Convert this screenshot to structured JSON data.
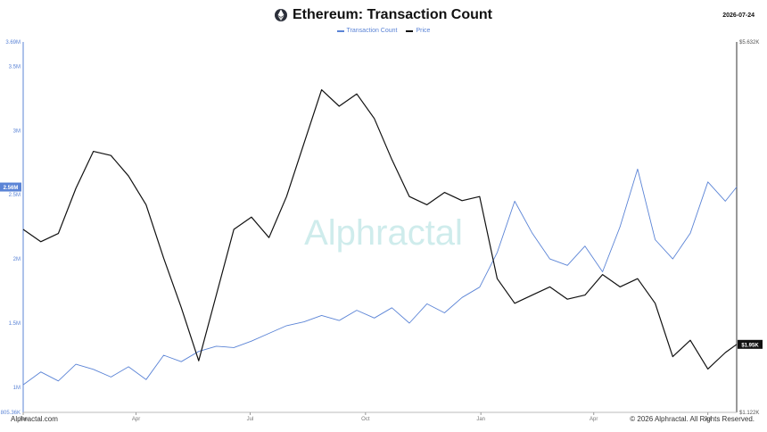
{
  "header": {
    "title": "Ethereum: Transaction Count",
    "date": "2026-07-24",
    "icon": "ethereum-icon"
  },
  "footer": {
    "source": "Alphractal.com",
    "copyright": "© 2026 Alphractal. All Rights Reserved."
  },
  "watermark": {
    "text": "Alphractal"
  },
  "colors": {
    "transactions": "#5b84d6",
    "price": "#111111",
    "watermark": "#cfecec",
    "axis": "#888888"
  },
  "chart_data": {
    "type": "line",
    "title": "Ethereum: Transaction Count",
    "legend_position": "top-center",
    "grid": false,
    "x_axis": {
      "range": [
        "2025-01-01",
        "2026-07-24"
      ],
      "ticks": [
        {
          "label": "Jan",
          "date": "2025-01-01"
        },
        {
          "label": "Apr",
          "date": "2025-04-01"
        },
        {
          "label": "Jul",
          "date": "2025-07-01"
        },
        {
          "label": "Oct",
          "date": "2025-10-01"
        },
        {
          "label": "Jan",
          "date": "2026-01-01"
        },
        {
          "label": "Apr",
          "date": "2026-04-01"
        },
        {
          "label": "Jul",
          "date": "2026-07-01"
        }
      ]
    },
    "y_left": {
      "label": "",
      "ylim": [
        805000,
        3690000
      ],
      "ticks": [
        {
          "label": "805.36K",
          "value": 805360
        },
        {
          "label": "1M",
          "value": 1000000
        },
        {
          "label": "1.5M",
          "value": 1500000
        },
        {
          "label": "2M",
          "value": 2000000
        },
        {
          "label": "2.5M",
          "value": 2500000
        },
        {
          "label": "3M",
          "value": 3000000
        },
        {
          "label": "3.5M",
          "value": 3500000
        },
        {
          "label": "3.69M",
          "value": 3690000
        }
      ],
      "current_label": "2.56M",
      "current_value": 2560000
    },
    "y_right": {
      "label": "",
      "ylim": [
        1122,
        5632
      ],
      "ticks": [
        {
          "label": "$1.122K",
          "value": 1122
        },
        {
          "label": "$5.632K",
          "value": 5632
        }
      ],
      "current_label": "$1.95K",
      "current_value": 1950
    },
    "series": [
      {
        "name": "Transaction Count",
        "axis": "left",
        "points": [
          [
            "2025-01-01",
            1020000
          ],
          [
            "2025-01-15",
            1120000
          ],
          [
            "2025-01-29",
            1050000
          ],
          [
            "2025-02-12",
            1180000
          ],
          [
            "2025-02-26",
            1140000
          ],
          [
            "2025-03-12",
            1080000
          ],
          [
            "2025-03-26",
            1160000
          ],
          [
            "2025-04-09",
            1060000
          ],
          [
            "2025-04-23",
            1250000
          ],
          [
            "2025-05-07",
            1200000
          ],
          [
            "2025-05-21",
            1280000
          ],
          [
            "2025-06-04",
            1320000
          ],
          [
            "2025-06-18",
            1310000
          ],
          [
            "2025-07-02",
            1360000
          ],
          [
            "2025-07-16",
            1420000
          ],
          [
            "2025-07-30",
            1480000
          ],
          [
            "2025-08-13",
            1510000
          ],
          [
            "2025-08-27",
            1560000
          ],
          [
            "2025-09-10",
            1520000
          ],
          [
            "2025-09-24",
            1600000
          ],
          [
            "2025-10-08",
            1540000
          ],
          [
            "2025-10-22",
            1620000
          ],
          [
            "2025-11-05",
            1500000
          ],
          [
            "2025-11-19",
            1650000
          ],
          [
            "2025-12-03",
            1580000
          ],
          [
            "2025-12-17",
            1700000
          ],
          [
            "2025-12-31",
            1780000
          ],
          [
            "2026-01-14",
            2050000
          ],
          [
            "2026-01-28",
            2450000
          ],
          [
            "2026-02-11",
            2200000
          ],
          [
            "2026-02-25",
            2000000
          ],
          [
            "2026-03-11",
            1950000
          ],
          [
            "2026-03-25",
            2100000
          ],
          [
            "2026-04-08",
            1900000
          ],
          [
            "2026-04-22",
            2250000
          ],
          [
            "2026-05-06",
            2700000
          ],
          [
            "2026-05-20",
            2150000
          ],
          [
            "2026-06-03",
            2000000
          ],
          [
            "2026-06-17",
            2200000
          ],
          [
            "2026-07-01",
            2600000
          ],
          [
            "2026-07-15",
            2450000
          ],
          [
            "2026-07-24",
            2560000
          ]
        ]
      },
      {
        "name": "Price",
        "axis": "right",
        "points": [
          [
            "2025-01-01",
            3350
          ],
          [
            "2025-01-15",
            3200
          ],
          [
            "2025-01-29",
            3300
          ],
          [
            "2025-02-12",
            3850
          ],
          [
            "2025-02-26",
            4300
          ],
          [
            "2025-03-12",
            4250
          ],
          [
            "2025-03-26",
            4000
          ],
          [
            "2025-04-09",
            3650
          ],
          [
            "2025-04-23",
            3000
          ],
          [
            "2025-05-07",
            2400
          ],
          [
            "2025-05-21",
            1750
          ],
          [
            "2025-06-04",
            2550
          ],
          [
            "2025-06-18",
            3350
          ],
          [
            "2025-07-02",
            3500
          ],
          [
            "2025-07-16",
            3250
          ],
          [
            "2025-07-30",
            3750
          ],
          [
            "2025-08-13",
            4400
          ],
          [
            "2025-08-27",
            5050
          ],
          [
            "2025-09-10",
            4850
          ],
          [
            "2025-09-24",
            5000
          ],
          [
            "2025-10-08",
            4700
          ],
          [
            "2025-10-22",
            4200
          ],
          [
            "2025-11-05",
            3750
          ],
          [
            "2025-11-19",
            3650
          ],
          [
            "2025-12-03",
            3800
          ],
          [
            "2025-12-17",
            3700
          ],
          [
            "2025-12-31",
            3750
          ],
          [
            "2026-01-14",
            2750
          ],
          [
            "2026-01-28",
            2450
          ],
          [
            "2026-02-11",
            2550
          ],
          [
            "2026-02-25",
            2650
          ],
          [
            "2026-03-11",
            2500
          ],
          [
            "2026-03-25",
            2550
          ],
          [
            "2026-04-08",
            2800
          ],
          [
            "2026-04-22",
            2650
          ],
          [
            "2026-05-06",
            2750
          ],
          [
            "2026-05-20",
            2450
          ],
          [
            "2026-06-03",
            1800
          ],
          [
            "2026-06-17",
            2000
          ],
          [
            "2026-07-01",
            1650
          ],
          [
            "2026-07-15",
            1850
          ],
          [
            "2026-07-24",
            1950
          ]
        ]
      }
    ]
  }
}
